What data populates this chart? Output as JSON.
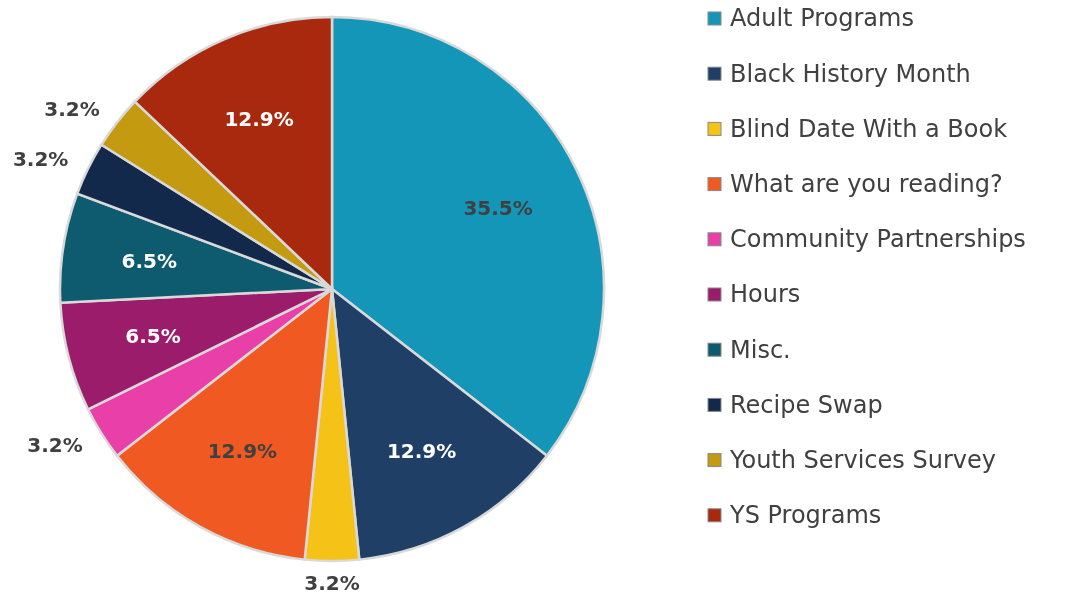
{
  "chart_data": {
    "type": "pie",
    "categories": [
      "Adult Programs",
      "Black History Month",
      "Blind Date With a Book",
      "What are you reading?",
      "Community Partnerships",
      "Hours",
      "Misc.",
      "Recipe Swap",
      "Youth Services Survey",
      "YS Programs"
    ],
    "values": [
      35.5,
      12.9,
      3.2,
      12.9,
      3.2,
      6.5,
      6.5,
      3.2,
      3.2,
      12.9
    ],
    "colors": [
      "#1496b8",
      "#1f3f66",
      "#f5c218",
      "#f05a22",
      "#e83fa8",
      "#9b1c6a",
      "#0e5a6e",
      "#13294b",
      "#c39a10",
      "#a8290e"
    ],
    "value_labels": [
      "35.5%",
      "12.9%",
      "3.2%",
      "12.9%",
      "3.2%",
      "6.5%",
      "6.5%",
      "3.2%",
      "3.2%",
      "12.9%"
    ],
    "legend": "right"
  }
}
